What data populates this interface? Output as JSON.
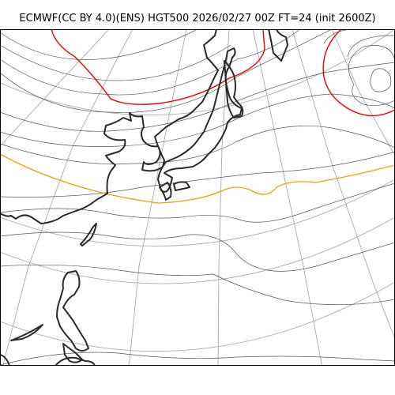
{
  "title": "ECMWF(CC BY 4.0)(ENS) HGT500 2026/02/27 00Z FT=24 (init 2600Z)",
  "colors": {
    "background": "#ffffff",
    "frame": "#000000",
    "graticule": "#aaaaaa",
    "contour": "#555555",
    "contour_highlight_red": "#ee0000",
    "contour_highlight_orange": "#f0a000",
    "coastline": "#2a2a2a"
  },
  "map": {
    "variable": "HGT500",
    "model": "ECMWF ENS",
    "valid_time": "2026/02/27 00Z",
    "forecast_hour": 24,
    "init": "2600Z",
    "region": "East Asia / Western North Pacific",
    "graticule": true,
    "coastlines": true,
    "highlighted_contours": [
      "red",
      "orange"
    ]
  }
}
